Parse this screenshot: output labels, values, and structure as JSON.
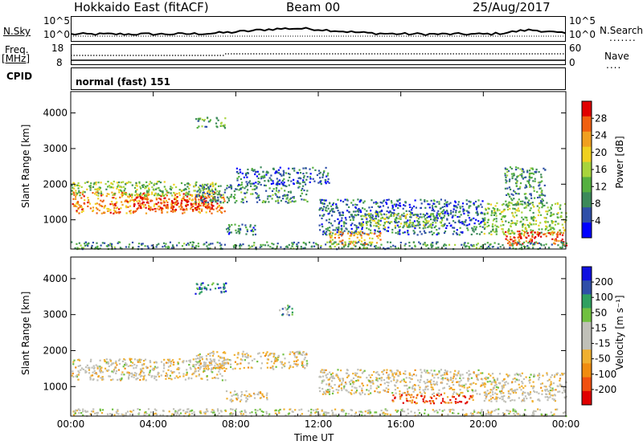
{
  "header": {
    "station": "Hokkaido East (fitACF)",
    "beam": "Beam 00",
    "date": "25/Aug/2017"
  },
  "top_panels": {
    "nsky_label": "N.Sky",
    "nsky_ticks": [
      "10^5",
      "10^0"
    ],
    "nsearch_label": "N.Search",
    "nsearch_ticks": [
      "10^5",
      "10^0"
    ],
    "freq_label": "Freq.",
    "freq_unit": "[MHz]",
    "freq_ticks": [
      "18",
      "8"
    ],
    "nave_label": "Nave",
    "nave_ticks": [
      "60",
      "0"
    ],
    "cpid_label": "CPID",
    "cpid_value": "normal (fast) 151"
  },
  "chart_data": [
    {
      "type": "heatmap",
      "panel": "power",
      "ylabel": "Slant Range [km]",
      "xlabel": "",
      "xticks": [
        "00:00",
        "04:00",
        "08:00",
        "12:00",
        "16:00",
        "20:00",
        "00:00"
      ],
      "yticks": [
        "4000",
        "3000",
        "2000",
        "1000"
      ],
      "xlim": [
        0,
        24
      ],
      "ylim": [
        180,
        4600
      ],
      "colorbar_label": "Power [dB]",
      "colorbar_ticks": [
        "28",
        "24",
        "20",
        "16",
        "12",
        "8",
        "4"
      ],
      "colors": [
        "#0000ff",
        "#2f4fa8",
        "#3c8a5a",
        "#55b040",
        "#a8d43c",
        "#f0d020",
        "#f0a020",
        "#f06010",
        "#e00000"
      ],
      "regions": [
        {
          "x": [
            0,
            7.5
          ],
          "y": [
            1200,
            1800
          ],
          "level": 0.75
        },
        {
          "x": [
            3,
            7
          ],
          "y": [
            1300,
            1700
          ],
          "level": 0.95
        },
        {
          "x": [
            0,
            7
          ],
          "y": [
            1700,
            2100
          ],
          "level": 0.45
        },
        {
          "x": [
            6,
            11.5
          ],
          "y": [
            1500,
            2000
          ],
          "level": 0.3
        },
        {
          "x": [
            7.5,
            9
          ],
          "y": [
            600,
            900
          ],
          "level": 0.25
        },
        {
          "x": [
            8,
            12.5
          ],
          "y": [
            2000,
            2500
          ],
          "level": 0.2
        },
        {
          "x": [
            12,
            20
          ],
          "y": [
            600,
            1600
          ],
          "level": 0.2
        },
        {
          "x": [
            12.5,
            15
          ],
          "y": [
            300,
            700
          ],
          "level": 0.7
        },
        {
          "x": [
            14,
            18
          ],
          "y": [
            800,
            1200
          ],
          "level": 0.45
        },
        {
          "x": [
            20,
            24
          ],
          "y": [
            600,
            1500
          ],
          "level": 0.45
        },
        {
          "x": [
            21,
            24
          ],
          "y": [
            300,
            700
          ],
          "level": 0.85
        },
        {
          "x": [
            21,
            23
          ],
          "y": [
            1400,
            2500
          ],
          "level": 0.3
        },
        {
          "x": [
            0,
            24
          ],
          "y": [
            200,
            400
          ],
          "level": 0.3
        },
        {
          "x": [
            6,
            7.5
          ],
          "y": [
            3600,
            3900
          ],
          "level": 0.35
        }
      ]
    },
    {
      "type": "heatmap",
      "panel": "velocity",
      "ylabel": "Slant Range [km]",
      "xlabel": "Time UT",
      "xticks": [
        "00:00",
        "04:00",
        "08:00",
        "12:00",
        "16:00",
        "20:00",
        "00:00"
      ],
      "yticks": [
        "4000",
        "3000",
        "2000",
        "1000"
      ],
      "xlim": [
        0,
        24
      ],
      "ylim": [
        180,
        4600
      ],
      "colorbar_label": "Velocity [m s⁻¹]",
      "colorbar_ticks": [
        "200",
        "100",
        "50",
        "15",
        "-15",
        "-50",
        "-100",
        "-200"
      ],
      "colors": [
        "#e00000",
        "#f05010",
        "#f08c10",
        "#f0b030",
        "#c0c0b8",
        "#c0c0b8",
        "#70c040",
        "#30a060",
        "#2f4fa8",
        "#1010e0"
      ],
      "regions": [
        {
          "x": [
            0,
            7.5
          ],
          "y": [
            1200,
            1800
          ],
          "level": 0.45
        },
        {
          "x": [
            6,
            11.5
          ],
          "y": [
            1500,
            2000
          ],
          "level": 0.45
        },
        {
          "x": [
            7.5,
            9.5
          ],
          "y": [
            600,
            900
          ],
          "level": 0.45
        },
        {
          "x": [
            12,
            20
          ],
          "y": [
            800,
            1500
          ],
          "level": 0.45
        },
        {
          "x": [
            15.5,
            19.5
          ],
          "y": [
            550,
            800
          ],
          "level": 0.15
        },
        {
          "x": [
            20,
            24
          ],
          "y": [
            600,
            1400
          ],
          "level": 0.45
        },
        {
          "x": [
            0,
            24
          ],
          "y": [
            200,
            400
          ],
          "level": 0.5
        },
        {
          "x": [
            10,
            10.8
          ],
          "y": [
            3000,
            3300
          ],
          "level": 0.7
        },
        {
          "x": [
            6,
            7.5
          ],
          "y": [
            3600,
            3900
          ],
          "level": 0.85
        }
      ]
    }
  ]
}
